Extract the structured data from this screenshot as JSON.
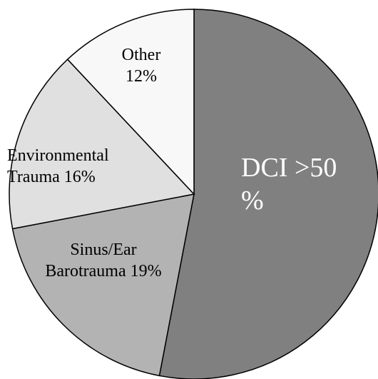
{
  "chart_data": {
    "type": "pie",
    "categories": [
      "DCI",
      "Sinus/Ear Barotrauma",
      "Environmental Trauma",
      "Other"
    ],
    "values": [
      53,
      19,
      16,
      12
    ],
    "value_labels": [
      ">50 %",
      "19%",
      "16%",
      "12%"
    ],
    "colors": [
      "#808080",
      "#b3b3b3",
      "#e0e0e0",
      "#f8f8f8"
    ]
  }
}
